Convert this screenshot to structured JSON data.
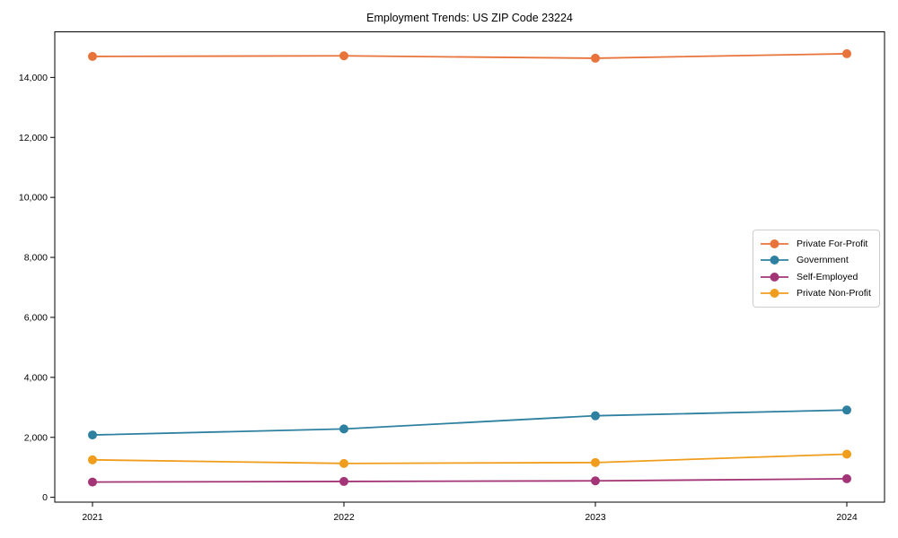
{
  "chart_data": {
    "type": "line",
    "title": "Employment Trends: US ZIP Code 23224",
    "x": [
      2021,
      2022,
      2023,
      2024
    ],
    "x_tick_labels": [
      "2021",
      "2022",
      "2023",
      "2024"
    ],
    "y_ticks": [
      0,
      2000,
      4000,
      6000,
      8000,
      10000,
      12000,
      14000
    ],
    "xlim": [
      2020.85,
      2024.15
    ],
    "ylim": [
      -160,
      15520
    ],
    "xlabel": "",
    "ylabel": "",
    "grid": false,
    "legend_position": "center right",
    "series": [
      {
        "name": "Private For-Profit",
        "color": "#e8743b",
        "values": [
          14700,
          14720,
          14640,
          14790
        ]
      },
      {
        "name": "Government",
        "color": "#2e80a0",
        "values": [
          2080,
          2280,
          2720,
          2910
        ]
      },
      {
        "name": "Self-Employed",
        "color": "#a33577",
        "values": [
          510,
          530,
          550,
          620
        ]
      },
      {
        "name": "Private Non-Profit",
        "color": "#f09d1e",
        "values": [
          1250,
          1130,
          1160,
          1440
        ]
      }
    ]
  }
}
